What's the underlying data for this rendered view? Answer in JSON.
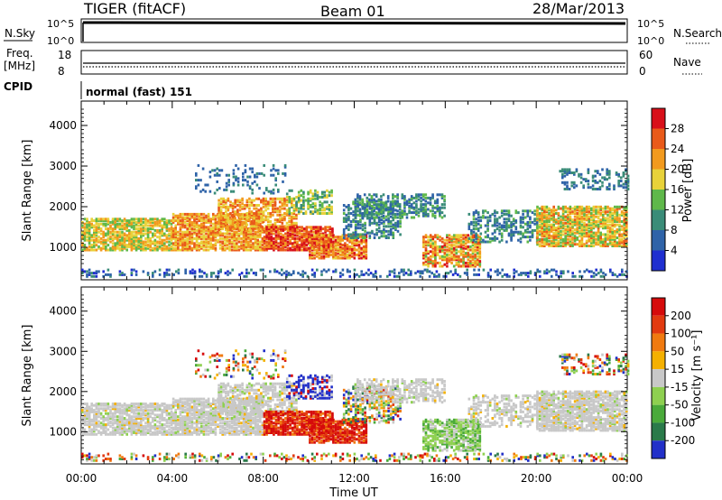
{
  "header": {
    "station": "TIGER (fitACF)",
    "beam": "Beam 01",
    "date": "28/Mar/2013"
  },
  "top_panels": {
    "nsky_label": "N.Sky",
    "nsky_ticks": [
      "10^5",
      "10^0"
    ],
    "nsearch_label": "N.Search",
    "freq_label_1": "Freq.",
    "freq_label_2": "[MHz]",
    "freq_ticks": [
      "18",
      "8"
    ],
    "nave_label": "Nave",
    "nave_ticks": [
      "60",
      "0"
    ],
    "cpid_label": "CPID",
    "cpid_value": "normal (fast) 151"
  },
  "colors": {
    "power_scale": [
      "#1f2fd0",
      "#2f63a8",
      "#3a8c78",
      "#5fb84a",
      "#e8d23a",
      "#f29a1e",
      "#e95a1a",
      "#d8101a"
    ],
    "velocity_scale": [
      "#2230c8",
      "#2a7a4a",
      "#4aaa3a",
      "#8ed050",
      "#c8c8c8",
      "#f4b000",
      "#f07a10",
      "#e23a10",
      "#d60b0b"
    ]
  },
  "chart_data": [
    {
      "type": "heatmap",
      "name": "power",
      "ylabel": "Slant Range [km]",
      "xlabel": "",
      "x_ticks": [
        "00:00",
        "04:00",
        "08:00",
        "12:00",
        "16:00",
        "20:00",
        "00:00"
      ],
      "y_ticks": [
        "4000",
        "3000",
        "2000",
        "1000"
      ],
      "ylim": [
        200,
        4600
      ],
      "xlim": [
        0,
        24
      ],
      "colorbar": {
        "label": "Power [dB]",
        "ticks": [
          "28",
          "24",
          "20",
          "16",
          "12",
          "8",
          "4"
        ],
        "range": [
          0,
          32
        ]
      }
    },
    {
      "type": "heatmap",
      "name": "velocity",
      "ylabel": "Slant Range [km]",
      "xlabel": "Time UT",
      "x_ticks": [
        "00:00",
        "04:00",
        "08:00",
        "12:00",
        "16:00",
        "20:00",
        "00:00"
      ],
      "y_ticks": [
        "4000",
        "3000",
        "2000",
        "1000"
      ],
      "ylim": [
        200,
        4600
      ],
      "xlim": [
        0,
        24
      ],
      "colorbar": {
        "label": "Velocity [m s⁻¹]",
        "ticks": [
          "200",
          "100",
          "50",
          "15",
          "-15",
          "-50",
          "-100",
          "-200"
        ]
      }
    }
  ]
}
